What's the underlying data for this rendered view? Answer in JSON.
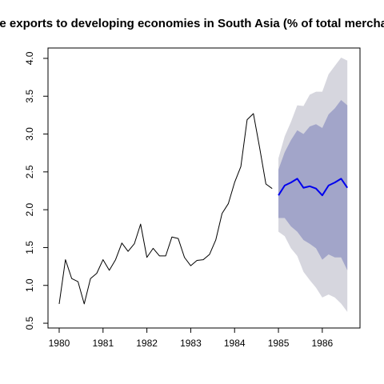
{
  "chart_data": {
    "type": "line",
    "title": "ise exports to developing economies in South Asia (% of total merchan",
    "xlim": [
      1979.745,
      1986.86
    ],
    "ylim": [
      0.437,
      4.137
    ],
    "xticks": [
      1980,
      1981,
      1982,
      1983,
      1984,
      1985,
      1986
    ],
    "yticks": [
      0.5,
      {
        "value": 1,
        "label": "1.0"
      },
      1.5,
      {
        "value": 2,
        "label": "2.0"
      },
      2.5,
      {
        "value": 3,
        "label": "3.0"
      },
      3.5,
      {
        "value": 4,
        "label": "4.0"
      }
    ],
    "bands": [
      {
        "color": "#d6d6de",
        "x": [
          1985,
          1985.143,
          1985.286,
          1985.429,
          1985.571,
          1985.714,
          1985.857,
          1986,
          1986.143,
          1986.286,
          1986.429,
          1986.571
        ],
        "upper": [
          2.68,
          2.97,
          3.16,
          3.38,
          3.37,
          3.52,
          3.56,
          3.56,
          3.79,
          3.9,
          4.01,
          3.97
        ],
        "lower": [
          1.71,
          1.65,
          1.49,
          1.39,
          1.18,
          1.07,
          0.97,
          0.84,
          0.88,
          0.84,
          0.76,
          0.65
        ]
      },
      {
        "color": "#a2a5c9",
        "x": [
          1985,
          1985.143,
          1985.286,
          1985.429,
          1985.571,
          1985.714,
          1985.857,
          1986,
          1986.143,
          1986.286,
          1986.429,
          1986.571
        ],
        "upper": [
          2.53,
          2.76,
          2.92,
          3.05,
          3.0,
          3.1,
          3.13,
          3.08,
          3.26,
          3.34,
          3.45,
          3.38
        ],
        "lower": [
          1.89,
          1.89,
          1.78,
          1.71,
          1.6,
          1.55,
          1.49,
          1.34,
          1.41,
          1.37,
          1.37,
          1.2
        ]
      }
    ],
    "series": [
      {
        "color": "#000000",
        "width": 1,
        "x": [
          1980,
          1980.143,
          1980.286,
          1980.429,
          1980.571,
          1980.714,
          1980.857,
          1981,
          1981.143,
          1981.286,
          1981.429,
          1981.571,
          1981.714,
          1981.857,
          1982,
          1982.143,
          1982.286,
          1982.429,
          1982.571,
          1982.714,
          1982.857,
          1983,
          1983.143,
          1983.286,
          1983.429,
          1983.571,
          1983.714,
          1983.857,
          1984,
          1984.143,
          1984.286,
          1984.429,
          1984.571,
          1984.714,
          1984.857
        ],
        "values": [
          0.755,
          1.34,
          1.09,
          1.05,
          0.755,
          1.09,
          1.16,
          1.34,
          1.2,
          1.34,
          1.56,
          1.45,
          1.55,
          1.81,
          1.37,
          1.49,
          1.39,
          1.39,
          1.64,
          1.62,
          1.37,
          1.26,
          1.33,
          1.34,
          1.41,
          1.6,
          1.95,
          2.08,
          2.36,
          2.57,
          3.19,
          3.27,
          2.82,
          2.34,
          2.28
        ]
      },
      {
        "color": "#0000ee",
        "width": 2,
        "x": [
          1985,
          1985.143,
          1985.286,
          1985.429,
          1985.571,
          1985.714,
          1985.857,
          1986,
          1986.143,
          1986.286,
          1986.429,
          1986.571
        ],
        "values": [
          2.19,
          2.32,
          2.36,
          2.41,
          2.29,
          2.31,
          2.28,
          2.19,
          2.32,
          2.36,
          2.41,
          2.29
        ]
      }
    ]
  }
}
